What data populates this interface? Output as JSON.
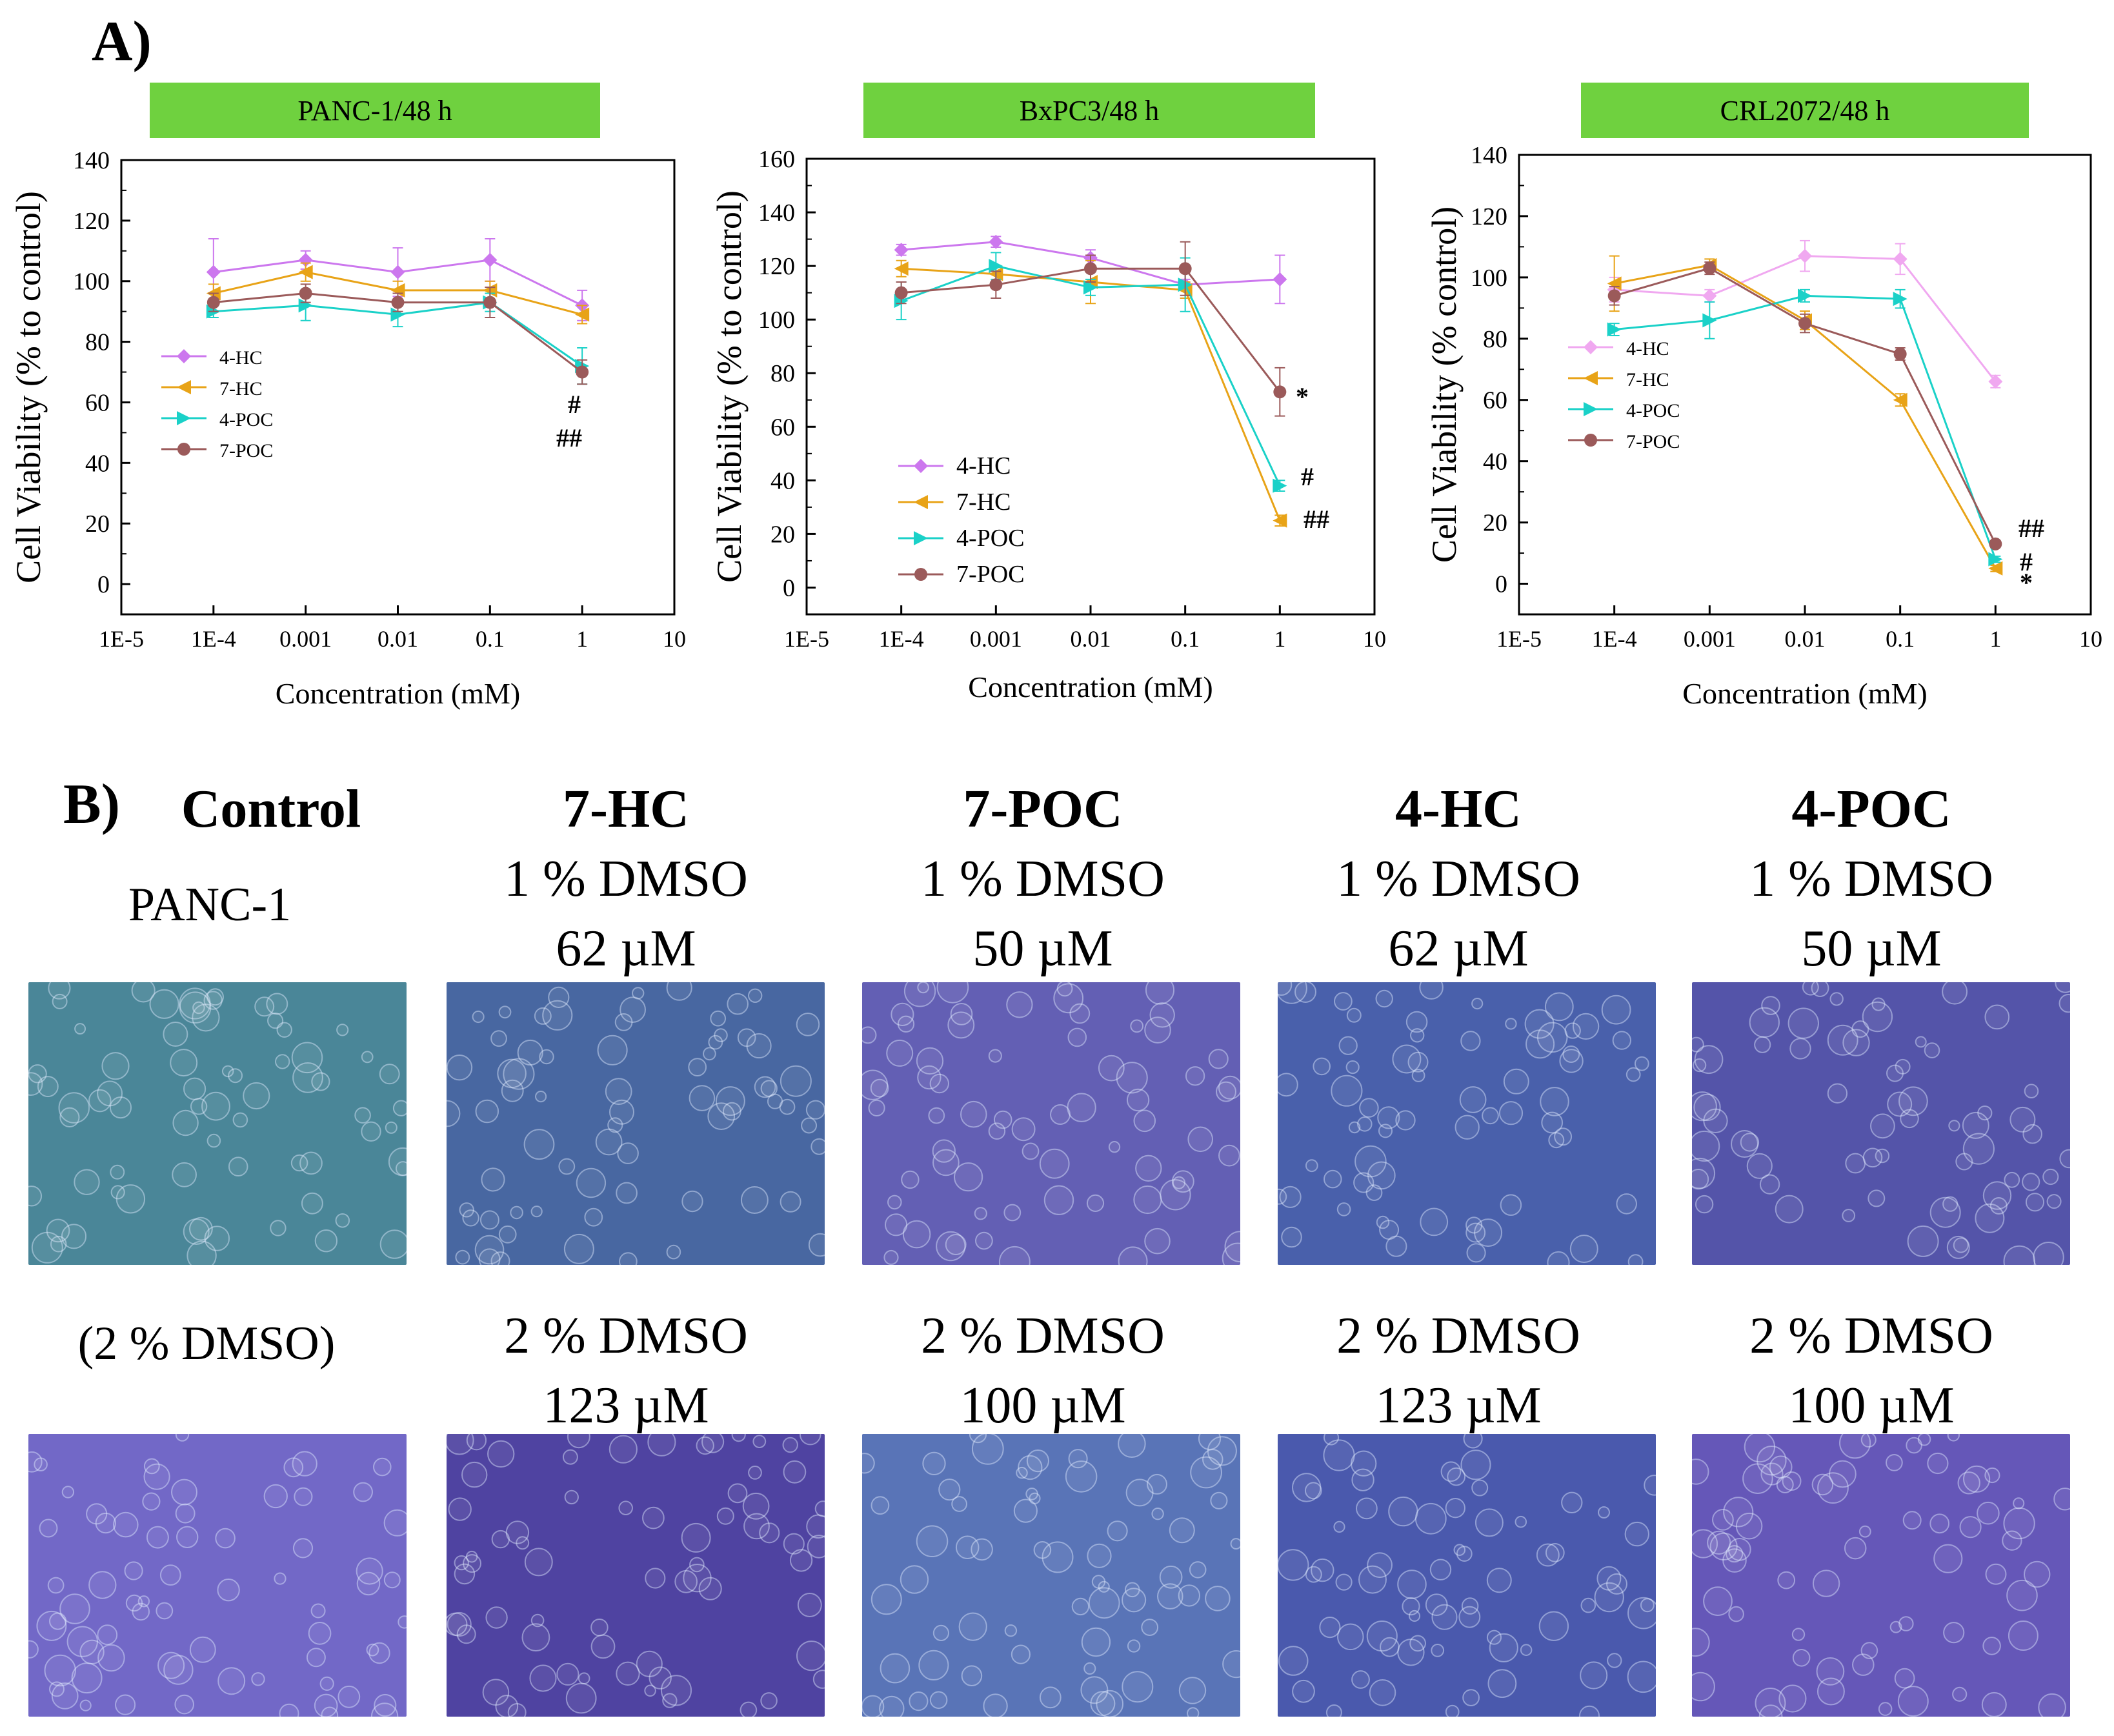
{
  "panel_a_label": "A)",
  "panel_b_label": "B)",
  "chart_data": [
    {
      "type": "line",
      "title": "PANC-1/48 h",
      "xlabel": "Concentration (mM)",
      "ylabel": "Cell Viability (% to control)",
      "xscale": "log",
      "xlim": [
        1e-05,
        10
      ],
      "x_ticks": [
        "1E-5",
        "1E-4",
        "0.001",
        "0.01",
        "0.1",
        "1",
        "10"
      ],
      "ylim": [
        -10,
        140
      ],
      "y_ticks": [
        0,
        20,
        40,
        60,
        80,
        100,
        120,
        140
      ],
      "x": [
        0.0001,
        0.001,
        0.01,
        0.1,
        1
      ],
      "legend_position": "middle-left",
      "series": [
        {
          "name": "4-HC",
          "color": "#cc77ee",
          "marker": "diamond",
          "values": [
            103,
            107,
            103,
            107,
            92
          ],
          "errors": [
            11,
            3,
            8,
            7,
            5
          ]
        },
        {
          "name": "7-HC",
          "color": "#e8a317",
          "marker": "triangle-left",
          "values": [
            96,
            103,
            97,
            97,
            89
          ],
          "errors": [
            3,
            3,
            3,
            3,
            3
          ]
        },
        {
          "name": "4-POC",
          "color": "#1ad1c8",
          "marker": "triangle-right",
          "values": [
            90,
            92,
            89,
            93,
            72
          ],
          "errors": [
            2,
            5,
            4,
            3,
            6
          ]
        },
        {
          "name": "7-POC",
          "color": "#9b5a5a",
          "marker": "circle",
          "values": [
            93,
            96,
            93,
            93,
            70
          ],
          "errors": [
            3,
            3,
            3,
            5,
            4
          ]
        }
      ],
      "annotations": [
        "#",
        "##"
      ]
    },
    {
      "type": "line",
      "title": "BxPC3/48 h",
      "xlabel": "Concentration (mM)",
      "ylabel": "Cell Viability (% to control)",
      "xscale": "log",
      "xlim": [
        1e-05,
        10
      ],
      "x_ticks": [
        "1E-5",
        "1E-4",
        "0.001",
        "0.01",
        "0.1",
        "1",
        "10"
      ],
      "ylim": [
        -10,
        160
      ],
      "y_ticks": [
        0,
        20,
        40,
        60,
        80,
        100,
        120,
        140,
        160
      ],
      "x": [
        0.0001,
        0.001,
        0.01,
        0.1,
        1
      ],
      "legend_position": "bottom-left",
      "series": [
        {
          "name": "4-HC",
          "color": "#cc77ee",
          "marker": "diamond",
          "values": [
            126,
            129,
            123,
            113,
            115
          ],
          "errors": [
            2,
            2,
            3,
            2,
            9
          ]
        },
        {
          "name": "7-HC",
          "color": "#e8a317",
          "marker": "triangle-left",
          "values": [
            119,
            117,
            114,
            111,
            25
          ],
          "errors": [
            3,
            3,
            8,
            3,
            2
          ]
        },
        {
          "name": "4-POC",
          "color": "#1ad1c8",
          "marker": "triangle-right",
          "values": [
            107,
            120,
            112,
            113,
            38
          ],
          "errors": [
            7,
            5,
            3,
            10,
            2
          ]
        },
        {
          "name": "7-POC",
          "color": "#9b5a5a",
          "marker": "circle",
          "values": [
            110,
            113,
            119,
            119,
            73
          ],
          "errors": [
            4,
            5,
            5,
            10,
            9
          ]
        }
      ],
      "annotations": [
        "*",
        "#",
        "##"
      ]
    },
    {
      "type": "line",
      "title": "CRL2072/48 h",
      "xlabel": "Concentration (mM)",
      "ylabel": "Cell Viability (% control)",
      "xscale": "log",
      "xlim": [
        1e-05,
        10
      ],
      "x_ticks": [
        "1E-5",
        "1E-4",
        "0.001",
        "0.01",
        "0.1",
        "1",
        "10"
      ],
      "ylim": [
        -10,
        140
      ],
      "y_ticks": [
        0,
        20,
        40,
        60,
        80,
        100,
        120,
        140
      ],
      "x": [
        0.0001,
        0.001,
        0.01,
        0.1,
        1
      ],
      "legend_position": "middle-left",
      "series": [
        {
          "name": "4-HC",
          "color": "#f0a8f0",
          "marker": "diamond",
          "values": [
            96,
            94,
            107,
            106,
            66
          ],
          "errors": [
            4,
            2,
            5,
            5,
            2
          ]
        },
        {
          "name": "7-HC",
          "color": "#e8a317",
          "marker": "triangle-left",
          "values": [
            98,
            104,
            86,
            60,
            5
          ],
          "errors": [
            9,
            2,
            3,
            2,
            1
          ]
        },
        {
          "name": "4-POC",
          "color": "#1ad1c8",
          "marker": "triangle-right",
          "values": [
            83,
            86,
            94,
            93,
            8
          ],
          "errors": [
            2,
            6,
            2,
            3,
            1
          ]
        },
        {
          "name": "7-POC",
          "color": "#9b5a5a",
          "marker": "circle",
          "values": [
            94,
            103,
            85,
            75,
            13
          ],
          "errors": [
            3,
            2,
            3,
            2,
            1
          ]
        }
      ],
      "annotations": [
        "##",
        "#",
        "*"
      ]
    }
  ],
  "panel_b": {
    "columns": [
      {
        "name": "Control",
        "cell_line": "PANC-1",
        "row2_label": "(2 % DMSO)"
      },
      {
        "name": "7-HC",
        "row1": [
          "1 % DMSO",
          "62 µM"
        ],
        "row2": [
          "2 % DMSO",
          "123 µM"
        ]
      },
      {
        "name": "7-POC",
        "row1": [
          "1 % DMSO",
          "50 µM"
        ],
        "row2": [
          "2 % DMSO",
          "100 µM"
        ]
      },
      {
        "name": "4-HC",
        "row1": [
          "1 % DMSO",
          "62 µM"
        ],
        "row2": [
          "2 % DMSO",
          "123 µM"
        ]
      },
      {
        "name": "4-POC",
        "row1": [
          "1 % DMSO",
          "50 µM"
        ],
        "row2": [
          "2 % DMSO",
          "100 µM"
        ]
      }
    ],
    "image_tints": {
      "row1": [
        "#3f7f92",
        "#3d5e9c",
        "#5a55b0",
        "#3e57a6",
        "#4a4aa4"
      ],
      "row2": [
        "#6a5fc4",
        "#44389c",
        "#4f6cb3",
        "#3f4fa8",
        "#5c4db4"
      ]
    }
  }
}
